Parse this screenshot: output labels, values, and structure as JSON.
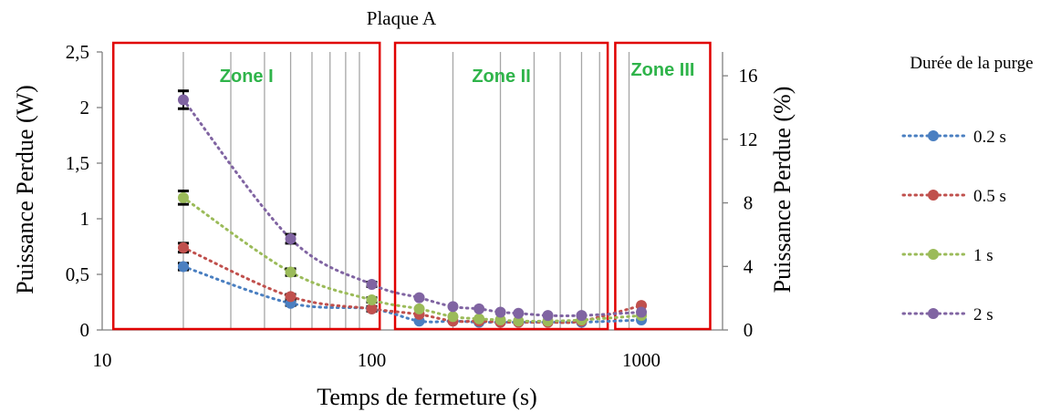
{
  "chart_data": {
    "type": "scatter",
    "title": "Plaque A",
    "xlabel": "Temps de fermeture (s)",
    "ylabel": "Puissance Perdue (W)",
    "y2label": "Puissance Perdue (%)",
    "xscale": "log",
    "xlim": [
      10,
      2000
    ],
    "ylim": [
      0,
      2.5
    ],
    "y2lim": [
      0,
      17.5
    ],
    "xticks": [
      "10",
      "100",
      "1000"
    ],
    "yticks": [
      "0",
      "0,5",
      "1",
      "1,5",
      "2",
      "2,5"
    ],
    "y2ticks": [
      "0",
      "4",
      "8",
      "12",
      "16"
    ],
    "grid": "vertical minor gridlines",
    "legend_title": "Durée de la purge",
    "legend_position": "right",
    "zones": [
      {
        "label": "Zone I",
        "x_range": [
          11,
          107
        ]
      },
      {
        "label": "Zone II",
        "x_range": [
          122,
          750
        ]
      },
      {
        "label": "Zone III",
        "x_range": [
          800,
          1800
        ]
      }
    ],
    "series": [
      {
        "name": "0.2 s",
        "color": "#4a7fc1",
        "x": [
          20,
          50,
          100,
          150,
          200,
          250,
          300,
          350,
          450,
          600,
          1000
        ],
        "y": [
          0.57,
          0.24,
          0.19,
          0.08,
          0.08,
          0.07,
          0.07,
          0.07,
          0.07,
          0.07,
          0.09
        ],
        "err": [
          0.03,
          0.02,
          0.02,
          0,
          0,
          0,
          0,
          0,
          0,
          0,
          0
        ]
      },
      {
        "name": "0.5 s",
        "color": "#c0504d",
        "x": [
          20,
          50,
          100,
          150,
          200,
          250,
          300,
          350,
          450,
          600,
          1000
        ],
        "y": [
          0.74,
          0.3,
          0.19,
          0.14,
          0.08,
          0.08,
          0.07,
          0.07,
          0.07,
          0.08,
          0.22
        ],
        "err": [
          0.04,
          0.02,
          0.02,
          0,
          0,
          0,
          0,
          0,
          0,
          0,
          0
        ]
      },
      {
        "name": "1 s",
        "color": "#9bbb59",
        "x": [
          20,
          50,
          100,
          150,
          200,
          250,
          300,
          350,
          450,
          600,
          1000
        ],
        "y": [
          1.19,
          0.52,
          0.27,
          0.19,
          0.12,
          0.1,
          0.09,
          0.08,
          0.08,
          0.09,
          0.13
        ],
        "err": [
          0.06,
          0.03,
          0.02,
          0,
          0,
          0,
          0,
          0,
          0,
          0,
          0
        ]
      },
      {
        "name": "2 s",
        "color": "#8064a2",
        "x": [
          20,
          50,
          100,
          150,
          200,
          250,
          300,
          350,
          450,
          600,
          1000
        ],
        "y": [
          2.07,
          0.82,
          0.41,
          0.29,
          0.21,
          0.19,
          0.16,
          0.15,
          0.13,
          0.13,
          0.16
        ],
        "err": [
          0.08,
          0.04,
          0.02,
          0,
          0,
          0,
          0,
          0,
          0,
          0,
          0
        ]
      }
    ]
  }
}
